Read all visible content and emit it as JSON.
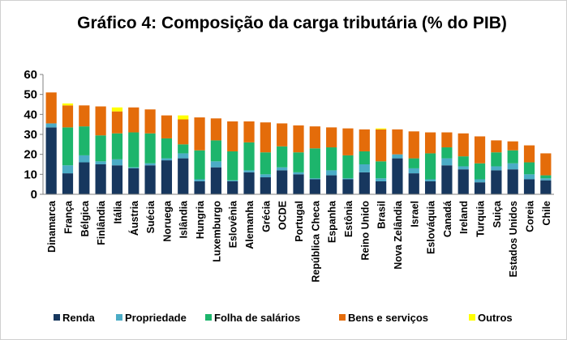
{
  "chart_data": {
    "type": "bar",
    "stacked": true,
    "title": "Gráfico 4: Composição da carga tributária (% do PIB)",
    "xlabel": "",
    "ylabel": "",
    "ylim": [
      0,
      60
    ],
    "yticks": [
      0,
      10,
      20,
      30,
      40,
      50,
      60
    ],
    "grid": false,
    "legend_position": "bottom",
    "categories": [
      "Dinamarca",
      "França",
      "Bélgica",
      "Finlândia",
      "Itália",
      "Áustria",
      "Suécia",
      "Noruega",
      "Islândia",
      "Hungria",
      "Luxemburgo",
      "Eslovênia",
      "Alemanha",
      "Grécia",
      "OCDE",
      "Portugal",
      "República Checa",
      "Espanha",
      "Estônia",
      "Reino Unido",
      "Brasil",
      "Nova Zelândia",
      "Israel",
      "Eslováquia",
      "Canadá",
      "Ireland",
      "Turquia",
      "Suiça",
      "Estados Unidos",
      "Coreia",
      "Chile"
    ],
    "series": [
      {
        "name": "Renda",
        "color": "#17375e",
        "values": [
          33.5,
          10.5,
          16,
          15,
          14.5,
          13,
          14.5,
          17,
          18,
          6.5,
          13.5,
          6.5,
          11,
          8.5,
          12,
          10,
          7.5,
          9.5,
          7.5,
          11,
          6.5,
          18,
          10.5,
          6.5,
          14.5,
          12.5,
          6,
          12,
          12.5,
          7.5,
          7
        ]
      },
      {
        "name": "Propriedade",
        "color": "#4bacc6",
        "values": [
          2,
          4,
          3.5,
          1.5,
          3,
          0.5,
          1,
          1,
          2.5,
          1,
          3,
          0.5,
          1,
          1.5,
          1.5,
          1,
          0.5,
          2.5,
          0.5,
          4,
          1.5,
          2,
          2.5,
          1,
          3.5,
          1.5,
          1.5,
          2,
          3,
          2.5,
          1
        ]
      },
      {
        "name": "Folha de salários",
        "color": "#1db56c",
        "values": [
          0,
          19,
          14.5,
          13,
          13,
          17.5,
          15,
          10,
          4.5,
          14.5,
          10.5,
          14.5,
          14,
          11,
          10.5,
          10,
          15,
          11.5,
          11.5,
          6.5,
          8.5,
          0,
          5,
          13,
          5.5,
          5,
          8,
          7,
          6.5,
          6,
          1.5
        ]
      },
      {
        "name": "Bens e serviços",
        "color": "#e46c0a",
        "values": [
          15.5,
          11,
          10.5,
          14.5,
          11,
          12.5,
          12,
          11.5,
          12.5,
          16.5,
          11,
          15,
          10.5,
          15,
          11.5,
          13.5,
          11,
          10,
          13.5,
          11,
          16,
          12.5,
          13.5,
          10.5,
          7.5,
          11.5,
          13.5,
          6,
          4.5,
          8.5,
          11
        ]
      },
      {
        "name": "Outros",
        "color": "#ffff00",
        "values": [
          0,
          1,
          0,
          0,
          2,
          0,
          0,
          0,
          2,
          0,
          0,
          0,
          0,
          0,
          0,
          0,
          0,
          0,
          0,
          0,
          0.5,
          0,
          0,
          0,
          0,
          0,
          0,
          0,
          0,
          0,
          0
        ]
      }
    ]
  }
}
